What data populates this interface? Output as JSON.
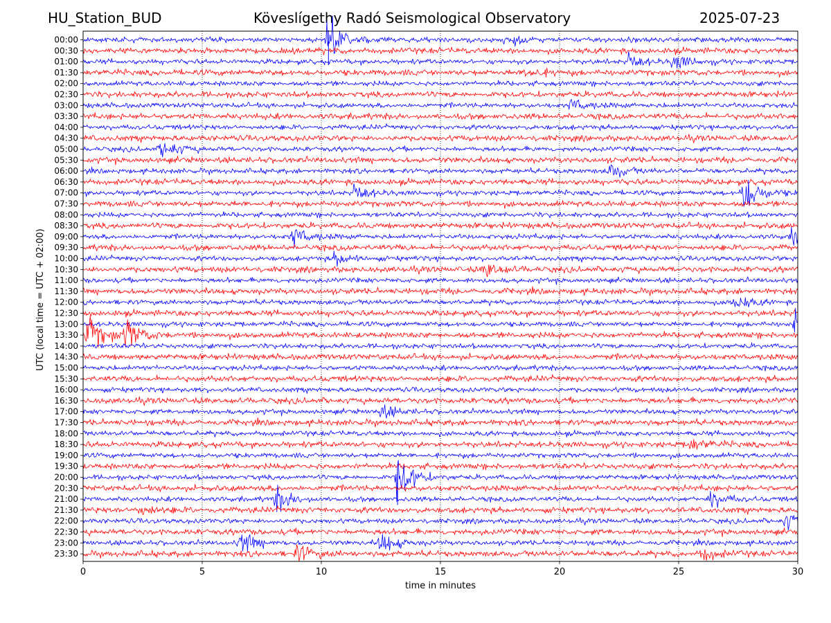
{
  "header": {
    "station": "HU_Station_BUD",
    "title": "Köveslígethy Radó Seismological Observatory",
    "date": "2025-07-23"
  },
  "chart_data": {
    "type": "line",
    "title": "Köveslígethy Radó Seismological Observatory",
    "xlabel": "time in minutes",
    "ylabel": "UTC (local time = UTC + 02:00)",
    "xlim": [
      0,
      30
    ],
    "xticks": [
      "0",
      "5",
      "10",
      "15",
      "20",
      "25",
      "30"
    ],
    "grid": "vertical dotted",
    "row_labels": [
      "00:00",
      "00:30",
      "01:00",
      "01:30",
      "02:00",
      "02:30",
      "03:00",
      "03:30",
      "04:00",
      "04:30",
      "05:00",
      "05:30",
      "06:00",
      "06:30",
      "07:00",
      "07:30",
      "08:00",
      "08:30",
      "09:00",
      "09:30",
      "10:00",
      "10:30",
      "11:00",
      "11:30",
      "12:00",
      "12:30",
      "13:00",
      "13:30",
      "14:00",
      "14:30",
      "15:00",
      "15:30",
      "16:00",
      "16:30",
      "17:00",
      "17:30",
      "18:00",
      "18:30",
      "19:00",
      "19:30",
      "20:00",
      "20:30",
      "21:00",
      "21:30",
      "22:00",
      "22:30",
      "23:00",
      "23:30"
    ],
    "trace_colors": [
      "#0000ff",
      "#ff0000"
    ],
    "events": [
      {
        "row": 0,
        "t": 10.3,
        "amp": 3.2
      },
      {
        "row": 0,
        "t": 17.7,
        "amp": 1.0
      },
      {
        "row": 2,
        "t": 22.9,
        "amp": 1.0
      },
      {
        "row": 2,
        "t": 24.8,
        "amp": 1.2
      },
      {
        "row": 3,
        "t": 18.6,
        "amp": 0.9
      },
      {
        "row": 6,
        "t": 20.5,
        "amp": 0.9
      },
      {
        "row": 10,
        "t": 3.3,
        "amp": 1.4
      },
      {
        "row": 12,
        "t": 22.1,
        "amp": 1.1
      },
      {
        "row": 14,
        "t": 11.4,
        "amp": 1.1
      },
      {
        "row": 14,
        "t": 27.7,
        "amp": 3.0
      },
      {
        "row": 18,
        "t": 8.8,
        "amp": 1.4
      },
      {
        "row": 18,
        "t": 29.8,
        "amp": 1.3
      },
      {
        "row": 20,
        "t": 10.6,
        "amp": 1.0
      },
      {
        "row": 21,
        "t": 16.9,
        "amp": 1.1
      },
      {
        "row": 24,
        "t": 27.3,
        "amp": 1.2
      },
      {
        "row": 26,
        "t": 29.9,
        "amp": 2.4
      },
      {
        "row": 27,
        "t": 0.2,
        "amp": 2.6
      },
      {
        "row": 27,
        "t": 1.8,
        "amp": 2.0
      },
      {
        "row": 34,
        "t": 12.4,
        "amp": 1.1
      },
      {
        "row": 37,
        "t": 25.5,
        "amp": 0.9
      },
      {
        "row": 40,
        "t": 13.2,
        "amp": 3.5
      },
      {
        "row": 42,
        "t": 8.1,
        "amp": 1.8
      },
      {
        "row": 42,
        "t": 26.3,
        "amp": 1.3
      },
      {
        "row": 43,
        "t": 2.3,
        "amp": 1.0
      },
      {
        "row": 44,
        "t": 29.5,
        "amp": 1.1
      },
      {
        "row": 46,
        "t": 6.6,
        "amp": 1.6
      },
      {
        "row": 46,
        "t": 12.5,
        "amp": 1.6
      },
      {
        "row": 47,
        "t": 9.0,
        "amp": 1.3
      },
      {
        "row": 47,
        "t": 26.0,
        "amp": 1.0
      }
    ]
  }
}
